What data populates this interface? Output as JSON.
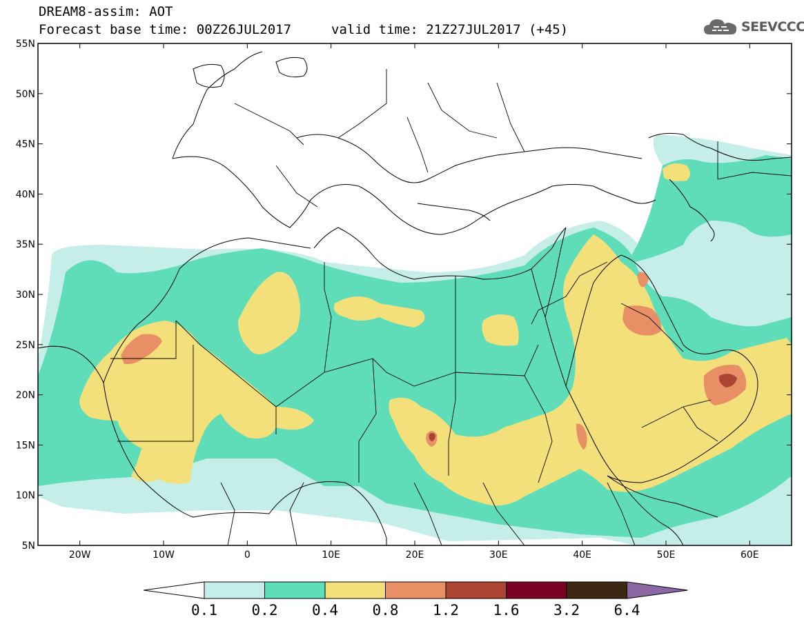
{
  "header": {
    "title_line1": "DREAM8-assim: AOT",
    "title_line2": "Forecast base time: 00Z26JUL2017",
    "valid_time": "valid time: 21Z27JUL2017 (+45)"
  },
  "logo": {
    "text": "SEEVCCC",
    "icon": "cloud-icon"
  },
  "map": {
    "lon_range": [
      -25,
      65
    ],
    "lat_range": [
      5,
      55
    ],
    "x_ticks": [
      "20W",
      "10W",
      "0",
      "10E",
      "20E",
      "30E",
      "40E",
      "50E",
      "60E"
    ],
    "y_ticks": [
      "55N",
      "50N",
      "45N",
      "40N",
      "35N",
      "30N",
      "25N",
      "20N",
      "15N",
      "10N",
      "5N"
    ]
  },
  "colorbar": {
    "labels": [
      "0.1",
      "0.2",
      "0.4",
      "0.8",
      "1.2",
      "1.6",
      "3.2",
      "6.4"
    ],
    "colors": [
      "#ffffff",
      "#c6eee8",
      "#5fddb8",
      "#f3e07a",
      "#e88f66",
      "#ab4433",
      "#7a0024",
      "#3e2814",
      "#8b68a4"
    ]
  },
  "colors": {
    "aot_0_1_0_2": "#c6eee8",
    "aot_0_2_0_4": "#5fddb8",
    "aot_0_4_0_8": "#f3e07a",
    "aot_0_8_1_2": "#e88f66",
    "aot_1_2_1_6": "#ab4433",
    "aot_1_6_3_2": "#7a0024"
  }
}
